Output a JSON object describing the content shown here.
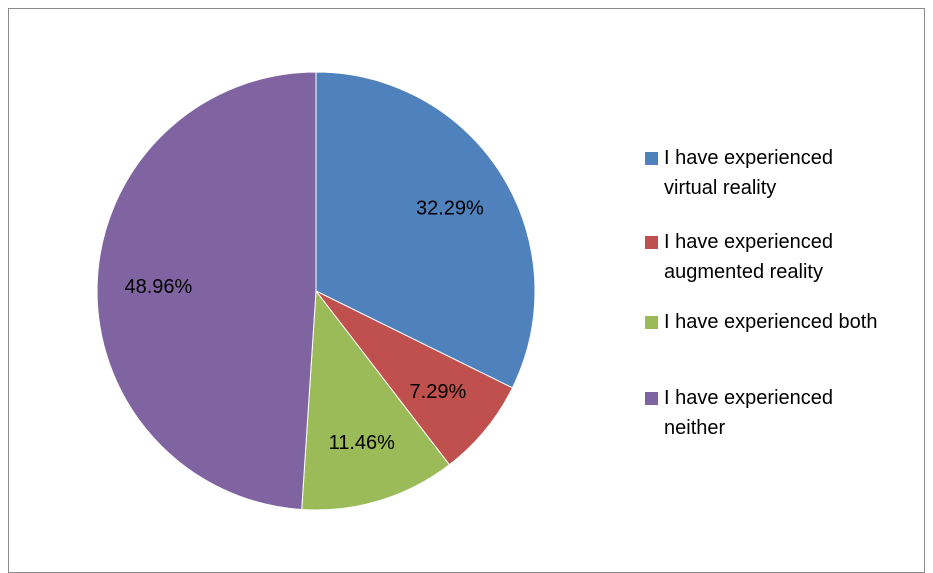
{
  "chart_data": {
    "type": "pie",
    "title": "",
    "categories": [
      "I have experienced virtual reality",
      "I have experienced augmented reality",
      "I have experienced both",
      "I have experienced neither"
    ],
    "values": [
      32.29,
      7.29,
      11.46,
      48.96
    ],
    "data_labels": [
      "32.29%",
      "7.29%",
      "11.46%",
      "48.96%"
    ],
    "colors": [
      "#4f81bd",
      "#c0504d",
      "#9bbb59",
      "#8064a2"
    ],
    "start_angle_deg": 0,
    "direction": "clockwise",
    "legend": {
      "position": "right",
      "items": [
        {
          "line1": "I have experienced",
          "line2": "virtual reality"
        },
        {
          "line1": "I have experienced",
          "line2": "augmented reality"
        },
        {
          "line1": "I have experienced both",
          "line2": ""
        },
        {
          "line1": "I have experienced",
          "line2": "neither"
        }
      ]
    }
  }
}
